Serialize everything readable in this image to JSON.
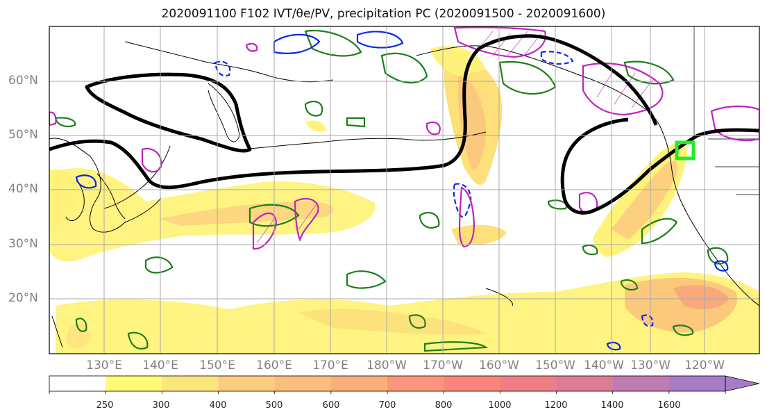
{
  "title": "2020091100 F102 IVT/θe/PV, precipitation PC (2020091500 - 2020091600)",
  "lat_labels": [
    "60°N",
    "50°N",
    "40°N",
    "30°N",
    "20°N"
  ],
  "lon_labels": [
    "130°E",
    "140°E",
    "150°E",
    "160°E",
    "170°E",
    "180°W",
    "170°W",
    "160°W",
    "150°W",
    "140°W",
    "130°W",
    "120°W"
  ],
  "colorbar": {
    "ticks": [
      "250",
      "300",
      "400",
      "500",
      "600",
      "700",
      "800",
      "1000",
      "1200",
      "1400",
      "1600"
    ],
    "colors": [
      "#ffffff",
      "#fffb77",
      "#fde57f",
      "#fccd7e",
      "#fdbd7c",
      "#fcae79",
      "#fd957a",
      "#fb8578",
      "#f07f85",
      "#dc7c95",
      "#c07cb0",
      "#a77cc7"
    ]
  },
  "colors": {
    "ivt_shading": "#fde26f",
    "theta_e_contour": "#000000",
    "pv_green": "#1a7f1a",
    "pv_blue": "#0a28e8",
    "pv_magenta": "#c022c0",
    "target_box": "#22ee22",
    "grid": "#a9a9a9"
  }
}
